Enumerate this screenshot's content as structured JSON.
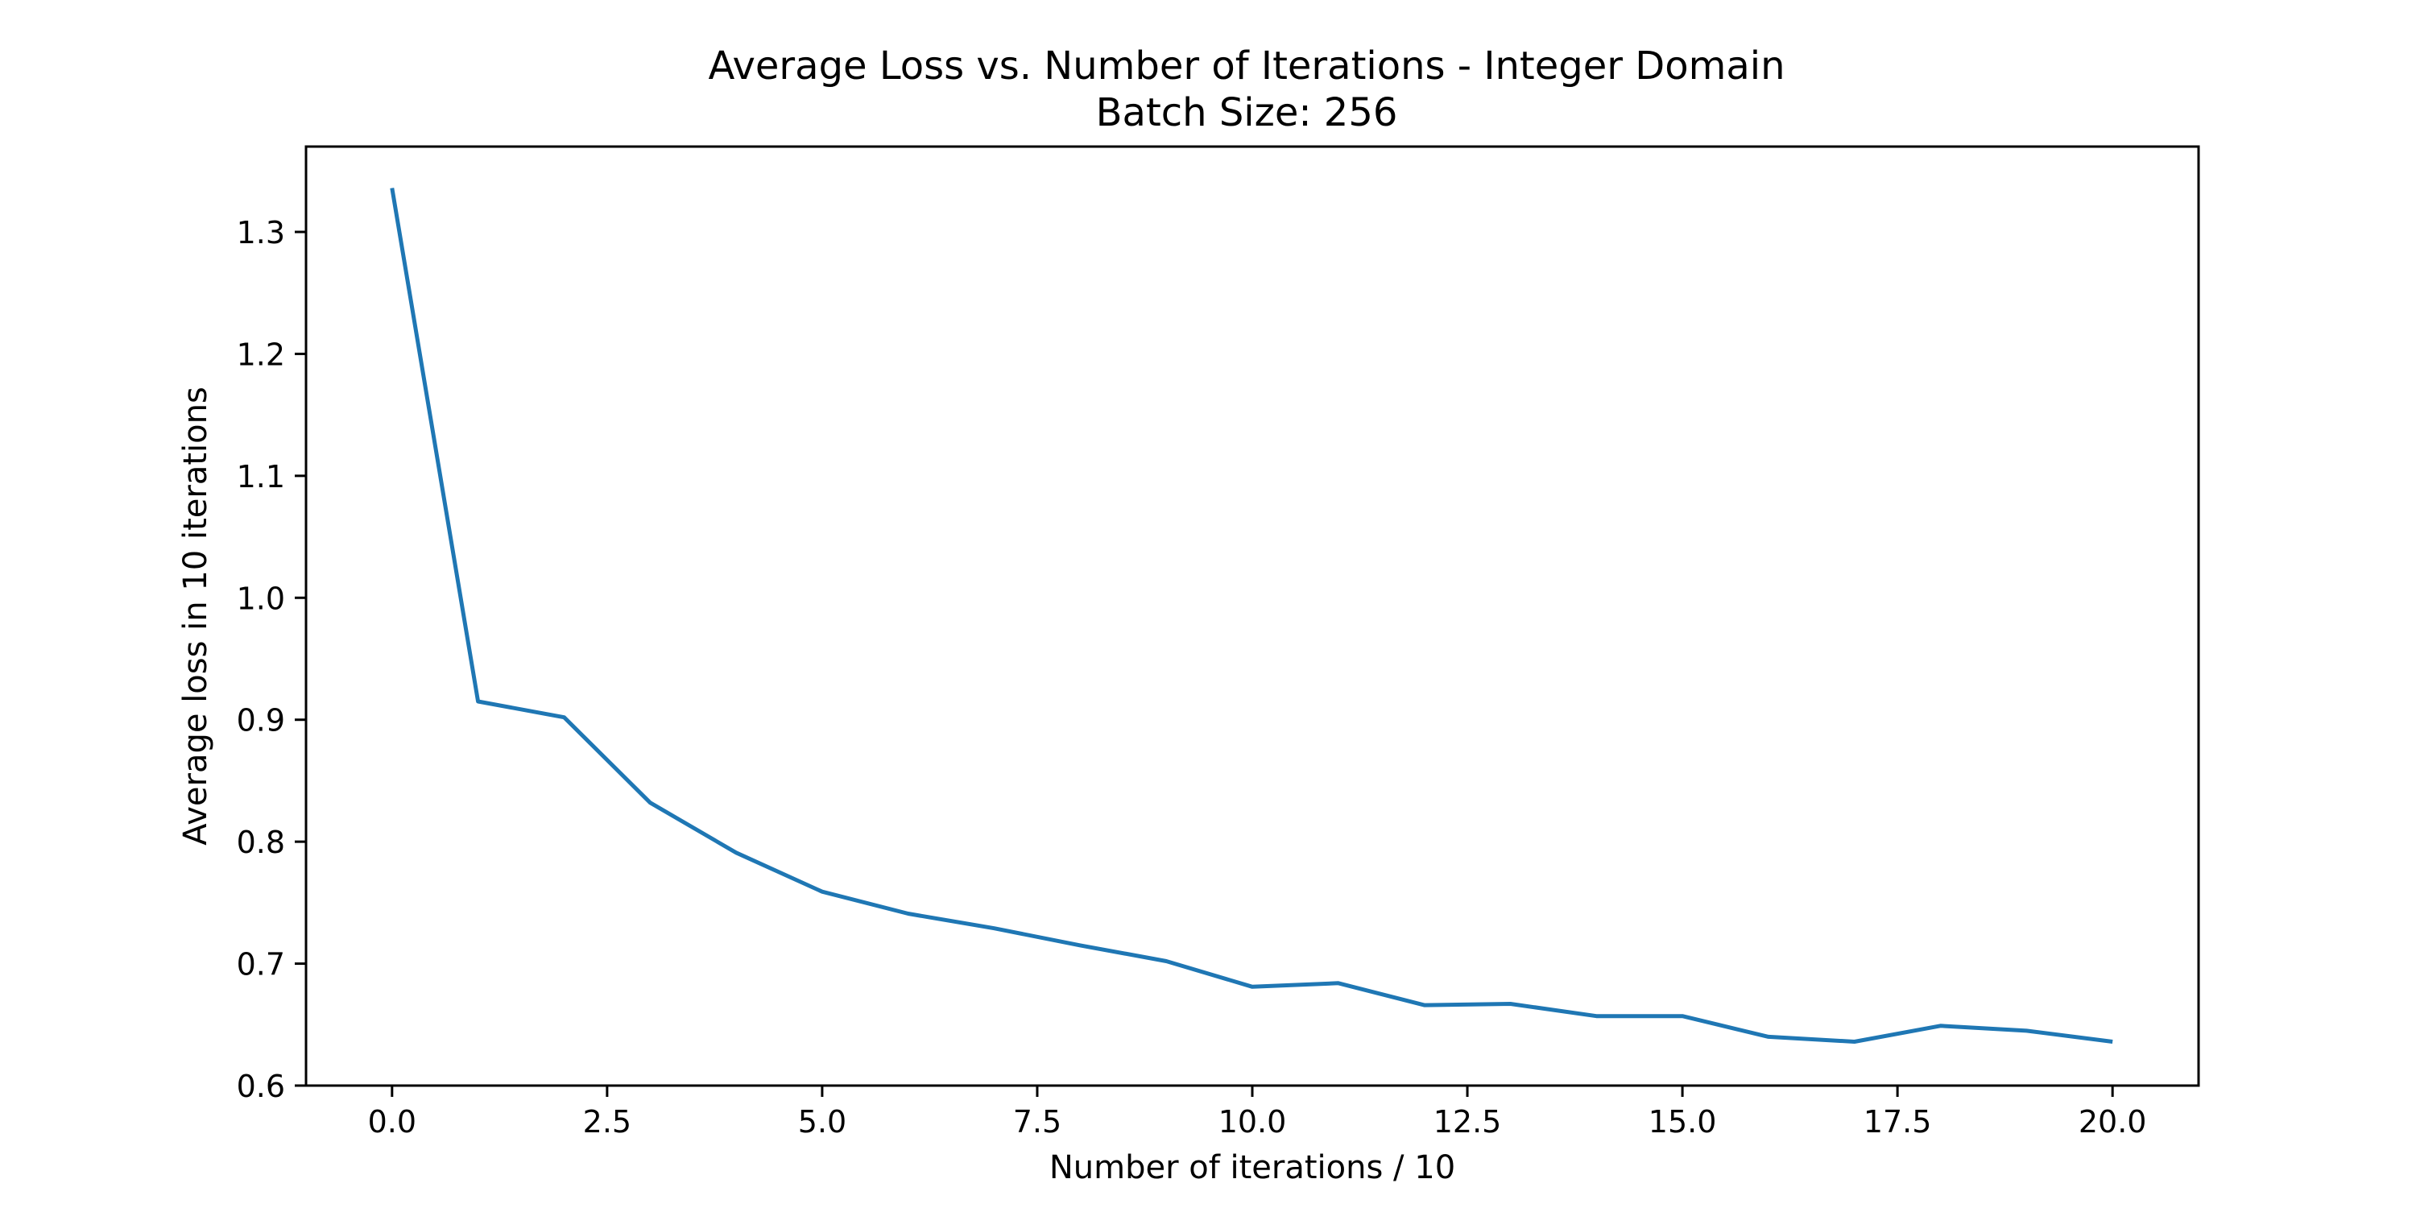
{
  "chart_data": {
    "type": "line",
    "title": "Average Loss vs. Number of Iterations - Integer Domain",
    "subtitle": "Batch Size: 256",
    "xlabel": "Number of iterations / 10",
    "ylabel": "Average loss in 10 iterations",
    "xlim": [
      -1,
      21
    ],
    "ylim": [
      0.6,
      1.37
    ],
    "xticks": [
      0.0,
      2.5,
      5.0,
      7.5,
      10.0,
      12.5,
      15.0,
      17.5,
      20.0
    ],
    "xtick_labels": [
      "0.0",
      "2.5",
      "5.0",
      "7.5",
      "10.0",
      "12.5",
      "15.0",
      "17.5",
      "20.0"
    ],
    "yticks": [
      0.6,
      0.7,
      0.8,
      0.9,
      1.0,
      1.1,
      1.2,
      1.3
    ],
    "ytick_labels": [
      "0.6",
      "0.7",
      "0.8",
      "0.9",
      "1.0",
      "1.1",
      "1.2",
      "1.3"
    ],
    "grid": false,
    "series": [
      {
        "color": "#1f77b4",
        "x": [
          0,
          1,
          2,
          3,
          4,
          5,
          6,
          7,
          8,
          9,
          10,
          11,
          12,
          13,
          14,
          15,
          16,
          17,
          18,
          19,
          20
        ],
        "y": [
          1.336,
          0.915,
          0.902,
          0.832,
          0.791,
          0.759,
          0.741,
          0.729,
          0.715,
          0.702,
          0.681,
          0.684,
          0.666,
          0.667,
          0.657,
          0.657,
          0.64,
          0.636,
          0.649,
          0.645,
          0.636
        ]
      }
    ]
  }
}
